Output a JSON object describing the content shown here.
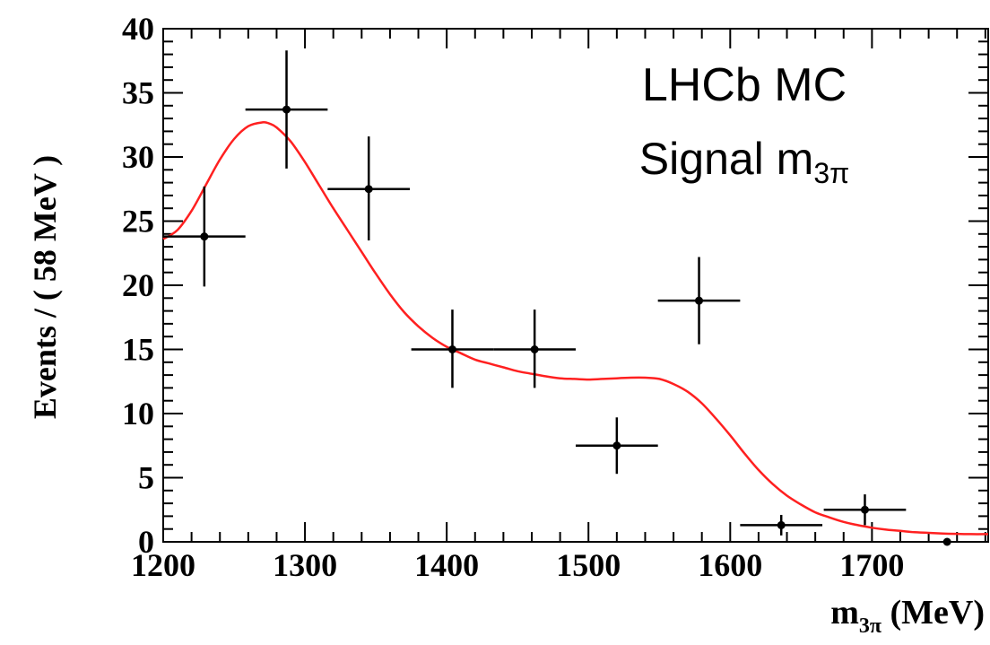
{
  "chart_data": {
    "type": "scatter",
    "annotation": {
      "line1": "LHCb MC",
      "line2_prefix": "Signal m",
      "line2_sub": "3π"
    },
    "ylabel": "Events / ( 58 MeV )",
    "xlabel": {
      "prefix": "m",
      "sub": "3π",
      "suffix": " (MeV)"
    },
    "xlim": [
      1200,
      1782
    ],
    "ylim": [
      0,
      40
    ],
    "x_ticks": [
      1200,
      1300,
      1400,
      1500,
      1600,
      1700
    ],
    "x_tick_labels": [
      "1200",
      "1300",
      "1400",
      "1500",
      "1600",
      "1700"
    ],
    "y_ticks": [
      0,
      5,
      10,
      15,
      20,
      25,
      30,
      35,
      40
    ],
    "y_tick_labels": [
      "0",
      "5",
      "10",
      "15",
      "20",
      "25",
      "30",
      "35",
      "40"
    ],
    "grid": false,
    "series": [
      {
        "kind": "points_with_errors",
        "color": "#000000",
        "x": [
          1229,
          1287,
          1345,
          1404,
          1462,
          1520,
          1578,
          1636,
          1695,
          1753
        ],
        "xerr": [
          29,
          29,
          29,
          29,
          29,
          29,
          29,
          29,
          29,
          29
        ],
        "y": [
          23.8,
          33.7,
          27.5,
          15.0,
          15.0,
          7.5,
          18.8,
          1.3,
          2.5,
          0.0
        ],
        "yerr_low": [
          3.9,
          4.6,
          4.0,
          3.0,
          3.0,
          2.2,
          3.4,
          0.8,
          1.2,
          0.0
        ],
        "yerr_high": [
          3.9,
          4.6,
          4.1,
          3.1,
          3.1,
          2.2,
          3.4,
          0.8,
          1.2,
          0.0
        ]
      },
      {
        "kind": "fit_curve",
        "color": "#ff2020",
        "x": [
          1200,
          1210,
          1220,
          1230,
          1240,
          1250,
          1260,
          1270,
          1275,
          1280,
          1290,
          1300,
          1310,
          1320,
          1330,
          1340,
          1350,
          1360,
          1370,
          1380,
          1390,
          1400,
          1410,
          1420,
          1430,
          1440,
          1450,
          1460,
          1470,
          1480,
          1490,
          1500,
          1510,
          1520,
          1530,
          1540,
          1550,
          1560,
          1570,
          1580,
          1590,
          1600,
          1610,
          1620,
          1630,
          1640,
          1650,
          1660,
          1670,
          1680,
          1690,
          1700,
          1710,
          1720,
          1730,
          1740,
          1750,
          1760,
          1770,
          1782
        ],
        "y": [
          23.6,
          24.3,
          25.8,
          27.8,
          29.8,
          31.4,
          32.4,
          32.7,
          32.6,
          32.3,
          31.2,
          29.6,
          27.8,
          26.0,
          24.3,
          22.6,
          20.9,
          19.3,
          17.9,
          16.8,
          15.9,
          15.2,
          14.7,
          14.2,
          13.9,
          13.6,
          13.3,
          13.1,
          12.9,
          12.75,
          12.7,
          12.65,
          12.7,
          12.75,
          12.8,
          12.8,
          12.7,
          12.3,
          11.7,
          10.8,
          9.6,
          8.3,
          6.9,
          5.6,
          4.5,
          3.6,
          2.9,
          2.3,
          1.9,
          1.55,
          1.3,
          1.1,
          0.95,
          0.85,
          0.75,
          0.7,
          0.65,
          0.62,
          0.6,
          0.6
        ]
      }
    ]
  }
}
